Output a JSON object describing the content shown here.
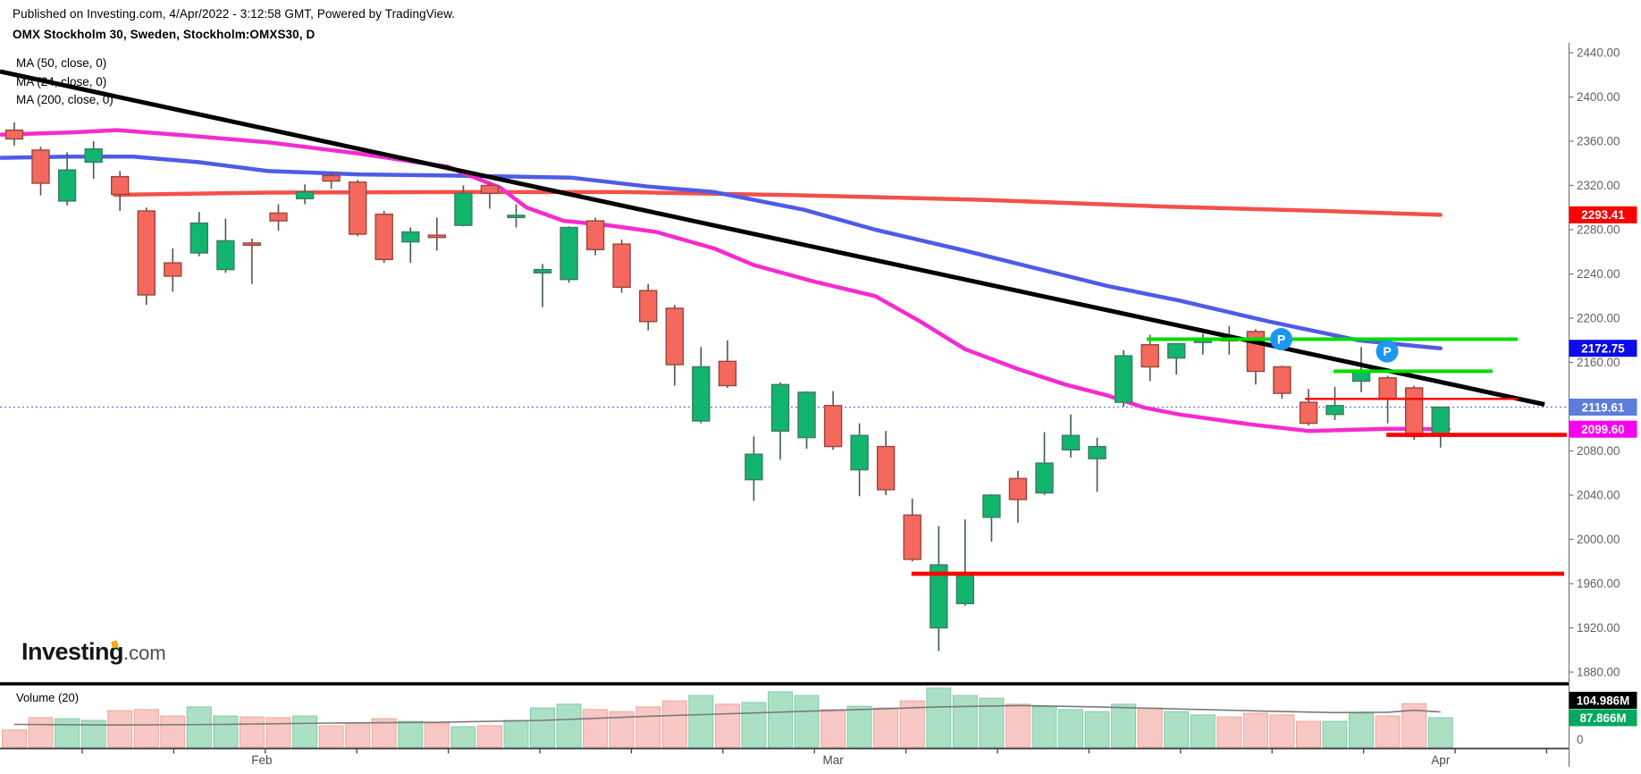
{
  "header": {
    "published_line": "Published on Investing.com, 4/Apr/2022 - 3:12:58 GMT, Powered by TradingView.",
    "title": "OMX Stockholm 30, Sweden, Stockholm:OMXS30, D",
    "ma_labels": [
      "MA (50, close, 0)",
      "MA (24, close, 0)",
      "MA (200, close, 0)"
    ]
  },
  "logo": {
    "brand": "Investing",
    "suffix": ".com"
  },
  "chart_data": {
    "type": "candlestick",
    "title": "OMX Stockholm 30, Sweden, Stockholm:OMXS30, D",
    "symbol": "Stockholm:OMXS30",
    "interval": "D",
    "ylim": [
      1880,
      2440
    ],
    "current_price": 2119.61,
    "price_axis": {
      "ticks": [
        {
          "value": 2440,
          "label": "2440.00"
        },
        {
          "value": 2400,
          "label": "2400.00"
        },
        {
          "value": 2360,
          "label": "2360.00"
        },
        {
          "value": 2320,
          "label": "2320.00"
        },
        {
          "value": 2280,
          "label": "2280.00"
        },
        {
          "value": 2240,
          "label": "2240.00"
        },
        {
          "value": 2200,
          "label": "2200.00"
        },
        {
          "value": 2160,
          "label": "2160.00"
        },
        {
          "value": 2080,
          "label": "2080.00"
        },
        {
          "value": 2040,
          "label": "2040.00"
        },
        {
          "value": 2000,
          "label": "2000.00"
        },
        {
          "value": 1960,
          "label": "1960.00"
        },
        {
          "value": 1920,
          "label": "1920.00"
        },
        {
          "value": 1880,
          "label": "1880.00"
        }
      ]
    },
    "months": [
      {
        "label": "Feb",
        "i": 9.37
      },
      {
        "label": "Mar",
        "i": 31.0
      },
      {
        "label": "Apr",
        "i": 54.0
      }
    ],
    "candles": [
      [
        2370,
        2377,
        2356,
        2362
      ],
      [
        2352,
        2355,
        2311,
        2322
      ],
      [
        2306,
        2350,
        2302,
        2334
      ],
      [
        2341,
        2360,
        2326,
        2353
      ],
      [
        2328,
        2333,
        2297,
        2312
      ],
      [
        2297,
        2300,
        2212,
        2221
      ],
      [
        2250,
        2263,
        2224,
        2238
      ],
      [
        2259,
        2296,
        2256,
        2286
      ],
      [
        2244,
        2290,
        2241,
        2270
      ],
      [
        2268,
        2272,
        2231,
        2266
      ],
      [
        2295,
        2303,
        2279,
        2288
      ],
      [
        2308,
        2321,
        2303,
        2314
      ],
      [
        2329,
        2332,
        2317,
        2324
      ],
      [
        2323,
        2325,
        2274,
        2276
      ],
      [
        2294,
        2297,
        2250,
        2253
      ],
      [
        2269,
        2282,
        2250,
        2278
      ],
      [
        2275,
        2291,
        2261,
        2273
      ],
      [
        2284,
        2320,
        2283,
        2313
      ],
      [
        2320,
        2322,
        2299,
        2313
      ],
      [
        2291,
        2303,
        2282,
        2293
      ],
      [
        2241,
        2249,
        2210,
        2244
      ],
      [
        2235,
        2283,
        2232,
        2282
      ],
      [
        2288,
        2291,
        2257,
        2262
      ],
      [
        2267,
        2271,
        2223,
        2228
      ],
      [
        2225,
        2231,
        2189,
        2197
      ],
      [
        2209,
        2212,
        2139,
        2158
      ],
      [
        2107,
        2174,
        2105,
        2156
      ],
      [
        2161,
        2180,
        2137,
        2139
      ],
      [
        2054,
        2093,
        2035,
        2077
      ],
      [
        2098,
        2142,
        2072,
        2140
      ],
      [
        2092,
        2134,
        2082,
        2133
      ],
      [
        2121,
        2134,
        2081,
        2084
      ],
      [
        2063,
        2105,
        2039,
        2094
      ],
      [
        2084,
        2098,
        2040,
        2045
      ],
      [
        2022,
        2037,
        1980,
        1982
      ],
      [
        1920,
        2012,
        1899,
        1977
      ],
      [
        1942,
        2018,
        1940,
        1969
      ],
      [
        2020,
        2041,
        1998,
        2040
      ],
      [
        2055,
        2062,
        2015,
        2036
      ],
      [
        2042,
        2097,
        2040,
        2069
      ],
      [
        2081,
        2113,
        2074,
        2094
      ],
      [
        2073,
        2092,
        2043,
        2084
      ],
      [
        2124,
        2171,
        2120,
        2166
      ],
      [
        2176,
        2185,
        2143,
        2156
      ],
      [
        2164,
        2177,
        2149,
        2177
      ],
      [
        2178,
        2186,
        2167,
        2182
      ],
      [
        2181,
        2193,
        2167,
        2180
      ],
      [
        2188,
        2190,
        2140,
        2152
      ],
      [
        2156,
        2157,
        2127,
        2132
      ],
      [
        2124,
        2136,
        2103,
        2105
      ],
      [
        2113,
        2138,
        2108,
        2121
      ],
      [
        2143,
        2174,
        2133,
        2152
      ],
      [
        2146,
        2148,
        2105,
        2127
      ],
      [
        2137,
        2139,
        2090,
        2093
      ],
      [
        2094,
        2120,
        2083,
        2119.61
      ]
    ],
    "volume_title": "Volume (20)",
    "volumes": [
      51,
      88,
      85,
      80,
      109,
      112,
      93,
      120,
      93,
      90,
      88,
      93,
      64,
      72,
      85,
      77,
      72,
      61,
      64,
      80,
      117,
      128,
      112,
      106,
      120,
      138,
      154,
      128,
      133,
      165,
      154,
      112,
      122,
      117,
      138,
      176,
      154,
      146,
      128,
      120,
      112,
      106,
      128,
      117,
      106,
      96,
      90,
      101,
      96,
      77,
      77,
      101,
      93,
      130,
      87.866
    ],
    "volume_ma_points": [
      [
        0,
        68
      ],
      [
        4,
        66
      ],
      [
        8,
        68
      ],
      [
        12,
        72
      ],
      [
        16,
        74
      ],
      [
        20,
        80
      ],
      [
        24,
        92
      ],
      [
        28,
        102
      ],
      [
        32,
        112
      ],
      [
        35,
        120
      ],
      [
        38,
        124
      ],
      [
        41,
        120
      ],
      [
        44,
        114
      ],
      [
        47,
        108
      ],
      [
        50,
        103
      ],
      [
        52,
        104
      ],
      [
        53,
        110
      ],
      [
        54,
        104.986
      ]
    ],
    "ma_lines": [
      {
        "name": "ma-200",
        "color": "#F4504A",
        "width": 4.5,
        "points": [
          [
            3.8,
            2311.5
          ],
          [
            9.6,
            2313.5
          ],
          [
            16.4,
            2314
          ],
          [
            23.1,
            2314
          ],
          [
            29.9,
            2311
          ],
          [
            36.7,
            2307
          ],
          [
            43.4,
            2301
          ],
          [
            49.5,
            2297
          ],
          [
            54,
            2293.41
          ]
        ]
      },
      {
        "name": "ma-50",
        "color": "#4F5BE8",
        "width": 4.5,
        "points": [
          [
            -0.5,
            2345
          ],
          [
            2,
            2346
          ],
          [
            4.5,
            2346
          ],
          [
            7,
            2341
          ],
          [
            9.6,
            2333
          ],
          [
            13,
            2330
          ],
          [
            16.4,
            2329
          ],
          [
            19,
            2328
          ],
          [
            21.1,
            2327
          ],
          [
            24,
            2319
          ],
          [
            26.5,
            2314
          ],
          [
            29.9,
            2298
          ],
          [
            32.6,
            2280
          ],
          [
            36,
            2261
          ],
          [
            38.7,
            2245
          ],
          [
            41.4,
            2229
          ],
          [
            44.1,
            2216
          ],
          [
            47.5,
            2197
          ],
          [
            50.9,
            2180
          ],
          [
            54,
            2172.75
          ]
        ]
      },
      {
        "name": "ma-24",
        "color": "#F52BD0",
        "width": 4.5,
        "points": [
          [
            -0.5,
            2366
          ],
          [
            2.2,
            2368
          ],
          [
            3.9,
            2370
          ],
          [
            6.6,
            2365
          ],
          [
            9.6,
            2359
          ],
          [
            13,
            2349
          ],
          [
            16.4,
            2337
          ],
          [
            18.4,
            2318
          ],
          [
            19.4,
            2300
          ],
          [
            20.8,
            2288
          ],
          [
            22.5,
            2284
          ],
          [
            24.3,
            2278
          ],
          [
            26.5,
            2263
          ],
          [
            28,
            2248
          ],
          [
            30.3,
            2233
          ],
          [
            32.6,
            2220
          ],
          [
            34.3,
            2197
          ],
          [
            36,
            2172
          ],
          [
            38,
            2154
          ],
          [
            39.8,
            2140
          ],
          [
            41.4,
            2130
          ],
          [
            42.8,
            2119
          ],
          [
            44.1,
            2113
          ],
          [
            46.8,
            2104
          ],
          [
            49,
            2098
          ],
          [
            52,
            2100
          ],
          [
            54.3,
            2099.6
          ]
        ]
      }
    ],
    "trend_line": {
      "name": "downtrend-line",
      "color": "#000000",
      "width": 5,
      "points": [
        [
          -0.54,
          2423
        ],
        [
          57.94,
          2122
        ]
      ]
    },
    "h_lines": [
      {
        "name": "resistance-green-1",
        "color": "#00DC00",
        "width": 4,
        "price": 2181,
        "i1": 42.88,
        "i2": 56.92
      },
      {
        "name": "resistance-green-2",
        "color": "#00DC00",
        "width": 4,
        "price": 2152,
        "i1": 49.95,
        "i2": 55.97
      },
      {
        "name": "level-red-thin",
        "color": "#FE0000",
        "width": 2.4,
        "price": 2127,
        "i1": 48.87,
        "i2": 56.92
      },
      {
        "name": "support-red-mid",
        "color": "#FE0000",
        "width": 4.6,
        "price": 2094.5,
        "i1": 51.95,
        "i2": 58.78
      },
      {
        "name": "support-red-long",
        "color": "#FE0000",
        "width": 4.6,
        "price": 1969,
        "i1": 33.97,
        "i2": 58.68
      }
    ],
    "p_markers": {
      "label": "P",
      "color": "#1E96F0",
      "items": [
        {
          "i": 47.97,
          "price": 2181
        },
        {
          "i": 51.98,
          "price": 2170
        }
      ]
    },
    "price_labels": [
      {
        "label": "2293.41",
        "bg": "#FE0000",
        "price": 2293.41
      },
      {
        "label": "2172.75",
        "bg": "#0B0BEB",
        "price": 2172.75
      },
      {
        "label": "2119.61",
        "bg": "#5B7EDD",
        "price": 2119.61,
        "dotted": true
      },
      {
        "label": "2099.60",
        "bg": "#F800F0",
        "price": 2099.6
      }
    ],
    "volume_labels": [
      {
        "label": "104.986M",
        "bg": "#000000",
        "vol": 104.986
      },
      {
        "label": "87.866M",
        "bg": "#00A95E",
        "vol": 87.866
      }
    ],
    "volume_zero_label": "0",
    "colors": {
      "up": "#11B56E",
      "up_border": "#3F7A63",
      "down": "#F4685D",
      "down_border": "#9A463D",
      "wick_up": "#3E5C4F",
      "wick_down": "#5E5247",
      "vol_up": "#ABE0C5",
      "vol_up_border": "#84CBA9",
      "vol_down": "#F8C8C4",
      "vol_down_border": "#EDA69E",
      "vol_ma": "#7a7a7a",
      "dotted": "#5C7CDC",
      "axis_line": "#777777",
      "axis_text": "#616161",
      "time_text": "#4a4a4a",
      "separator": "#000000",
      "label_text": "#ffffff"
    }
  }
}
